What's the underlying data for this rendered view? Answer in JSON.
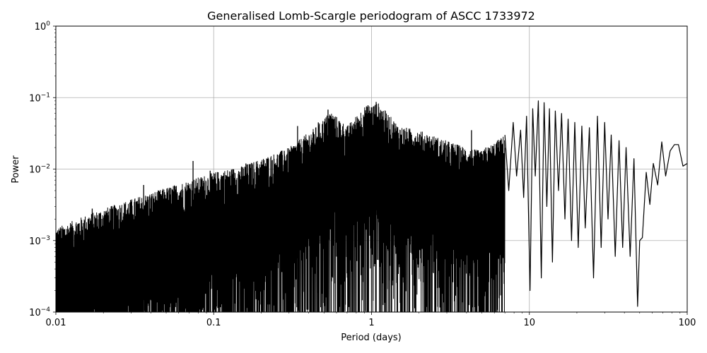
{
  "chart_data": {
    "type": "line",
    "title": "Generalised Lomb-Scargle periodogram of ASCC 1733972",
    "xlabel": "Period (days)",
    "ylabel": "Power",
    "x_scale": "log",
    "y_scale": "log",
    "xlim": [
      0.01,
      100
    ],
    "ylim": [
      0.0001,
      1
    ],
    "grid": true,
    "line_color": "#000000",
    "grid_color": "#b0b0b0",
    "x_ticks": [
      {
        "value": 0.01,
        "label": "0.01"
      },
      {
        "value": 0.1,
        "label": "0.1"
      },
      {
        "value": 1,
        "label": "1"
      },
      {
        "value": 10,
        "label": "10"
      },
      {
        "value": 100,
        "label": "100"
      }
    ],
    "y_ticks": [
      {
        "value": 0.0001,
        "base": "10",
        "exp": "−4"
      },
      {
        "value": 0.001,
        "base": "10",
        "exp": "−3"
      },
      {
        "value": 0.01,
        "base": "10",
        "exp": "−2"
      },
      {
        "value": 0.1,
        "base": "10",
        "exp": "−1"
      },
      {
        "value": 1,
        "base": "10",
        "exp": "0"
      }
    ],
    "envelope": {
      "x": [
        0.01,
        0.015,
        0.02,
        0.03,
        0.05,
        0.07,
        0.1,
        0.15,
        0.2,
        0.3,
        0.45,
        0.55,
        0.7,
        0.9,
        1.1,
        1.5,
        2.0,
        3.0,
        4.0,
        5.0,
        7.0
      ],
      "peak_power": [
        0.0015,
        0.0022,
        0.0028,
        0.0038,
        0.0055,
        0.007,
        0.009,
        0.011,
        0.014,
        0.02,
        0.04,
        0.065,
        0.04,
        0.075,
        0.085,
        0.04,
        0.035,
        0.025,
        0.02,
        0.018,
        0.03
      ]
    },
    "peaks": [
      {
        "period": 0.017,
        "power": 0.0028
      },
      {
        "period": 0.036,
        "power": 0.006
      },
      {
        "period": 0.074,
        "power": 0.013
      },
      {
        "period": 0.095,
        "power": 0.0095
      },
      {
        "period": 0.16,
        "power": 0.012
      },
      {
        "period": 0.28,
        "power": 0.018
      },
      {
        "period": 0.34,
        "power": 0.04
      },
      {
        "period": 0.46,
        "power": 0.045
      },
      {
        "period": 0.53,
        "power": 0.068
      },
      {
        "period": 0.95,
        "power": 0.078
      },
      {
        "period": 1.07,
        "power": 0.087
      },
      {
        "period": 1.3,
        "power": 0.03
      },
      {
        "period": 4.3,
        "power": 0.035
      },
      {
        "period": 5.3,
        "power": 0.02
      }
    ],
    "series": [
      {
        "x": [
          7.0,
          7.4,
          7.9,
          8.3,
          8.8,
          9.2,
          9.6,
          10.1,
          10.5,
          10.9,
          11.4,
          11.9,
          12.4,
          12.9,
          13.4,
          14.0,
          14.6,
          15.3,
          16.0,
          16.8,
          17.6,
          18.5,
          19.4,
          20.4,
          21.5,
          22.6,
          24.0,
          25.5,
          27.0,
          28.5,
          30.0,
          31.5,
          33.0,
          35.0,
          37.0,
          39.0,
          41.0,
          43.5,
          46.0,
          48.5,
          50.0,
          52.0,
          55.0,
          58.0,
          61.0,
          65.0,
          69.0,
          73.0,
          78.0,
          83.0,
          88.0,
          94.0,
          100.0
        ],
        "power": [
          0.03,
          0.005,
          0.045,
          0.008,
          0.035,
          0.004,
          0.055,
          0.0002,
          0.07,
          0.008,
          0.09,
          0.0003,
          0.085,
          0.003,
          0.07,
          0.0005,
          0.065,
          0.005,
          0.06,
          0.002,
          0.05,
          0.001,
          0.045,
          0.0008,
          0.04,
          0.0015,
          0.038,
          0.0003,
          0.055,
          0.0008,
          0.045,
          0.002,
          0.03,
          0.0006,
          0.025,
          0.0008,
          0.02,
          0.0006,
          0.014,
          0.00012,
          0.001,
          0.0011,
          0.009,
          0.0032,
          0.012,
          0.006,
          0.024,
          0.008,
          0.018,
          0.022,
          0.022,
          0.011,
          0.012
        ]
      }
    ]
  }
}
